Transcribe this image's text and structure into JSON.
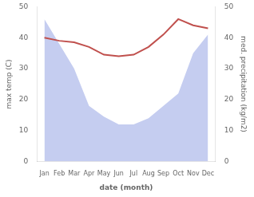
{
  "chart_data": {
    "type": "line",
    "xlabel": "date (month)",
    "ylabel": "max temp (C)",
    "y2label": "med. precipitation (kg/m2)",
    "categories": [
      "Jan",
      "Feb",
      "Mar",
      "Apr",
      "May",
      "Jun",
      "Jul",
      "Aug",
      "Sep",
      "Oct",
      "Nov",
      "Dec"
    ],
    "series": [
      {
        "type": "area",
        "axis": "y2",
        "color": "#c5cdf0",
        "values": [
          46.0,
          38.0,
          30.0,
          18.0,
          14.5,
          12.0,
          12.0,
          14.0,
          18.0,
          22.0,
          35.0,
          41.0
        ]
      },
      {
        "type": "line",
        "color": "#c0504d",
        "values": [
          40.0,
          39.0,
          38.5,
          37.0,
          34.5,
          34.0,
          34.5,
          37.0,
          41.0,
          46.0,
          44.0,
          43.0
        ]
      }
    ],
    "ylim": [
      0,
      50
    ],
    "yticks": [
      0,
      10,
      20,
      30,
      40,
      50
    ],
    "y2lim": [
      0,
      50
    ],
    "y2ticks": [
      0,
      10,
      20,
      30,
      40,
      50
    ],
    "grid": false
  }
}
